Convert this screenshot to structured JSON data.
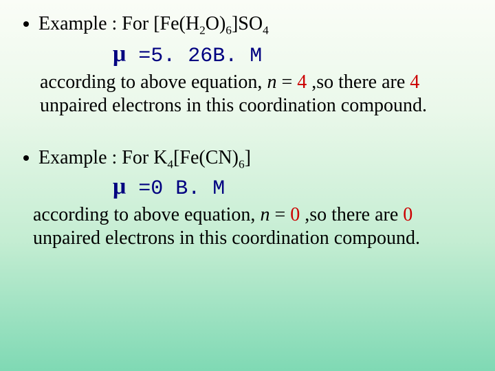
{
  "example1": {
    "label": "Example : For  [Fe(H",
    "sub1": "2",
    "mid1": "O)",
    "sub2": "6",
    "mid2": "]SO",
    "sub3": "4",
    "mu_symbol": "μ",
    "mu_value": " =5. 26B. M",
    "para_before_n": "according to above equation, ",
    "n_var": "n",
    "eq": " = ",
    "n_val": "4",
    "after_n": " ,so there are ",
    "count": "4",
    "tail": " unpaired electrons in this coordination compound."
  },
  "example2": {
    "label": "Example : For  K",
    "sub1": "4",
    "mid1": "[Fe(CN)",
    "sub2": "6",
    "mid2": "]",
    "mu_symbol": "μ",
    "mu_value": " =0 B. M",
    "para_before_n": "according to above equation, ",
    "n_var": "n",
    "eq": " = ",
    "n_val": "0",
    "after_n": " ,so there are ",
    "count": "0",
    "tail": " unpaired electrons in this coordination compound."
  },
  "colors": {
    "navy": "#000080",
    "red": "#cc0000",
    "text": "#000000"
  }
}
